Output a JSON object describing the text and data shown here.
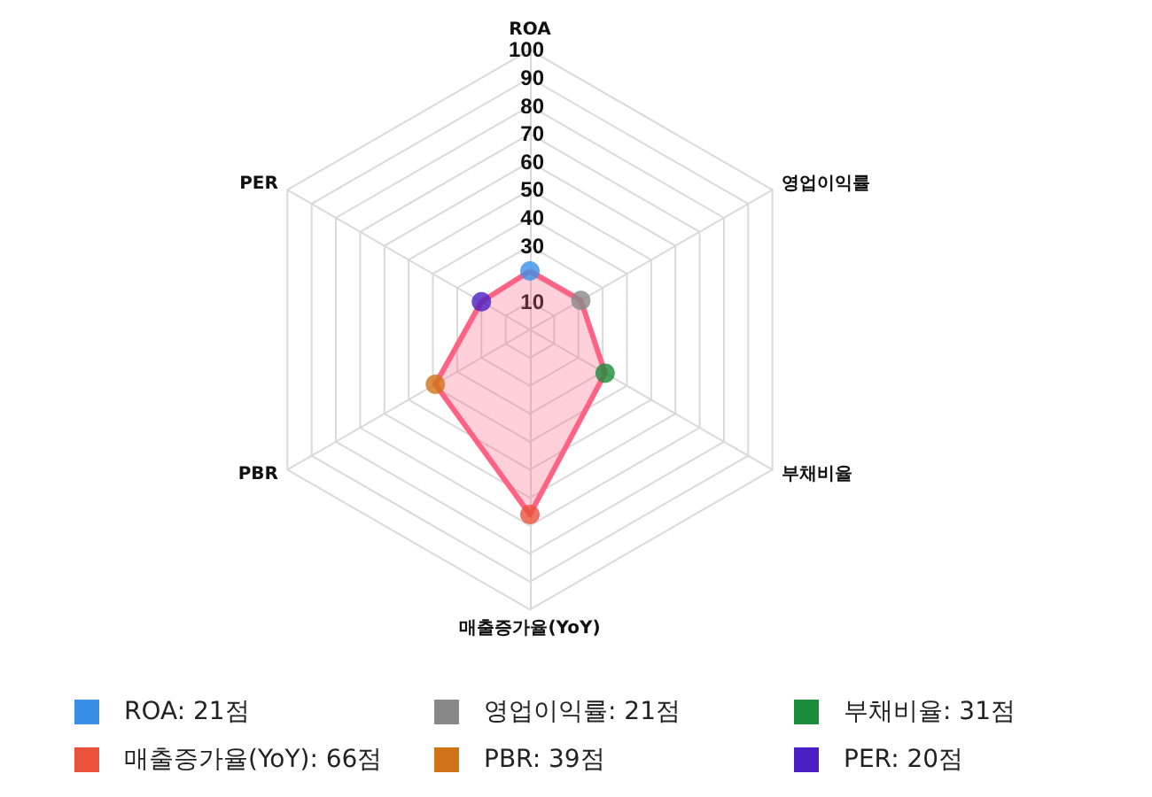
{
  "chart_data": {
    "type": "radar",
    "categories": [
      "ROA",
      "영업이익률",
      "부채비율",
      "매출증가율(YoY)",
      "PBR",
      "PER"
    ],
    "series": [
      {
        "color": "#ff6384",
        "values": [
          21,
          21,
          31,
          66,
          39,
          20
        ]
      }
    ],
    "colors": [
      "#3a8ee6",
      "#888888",
      "#1a8c3a",
      "#eb503a",
      "#cf7417",
      "#4a1fc4"
    ],
    "value_labels": [
      "ROA: 21점",
      "영업이익률: 21점",
      "부채비율: 31점",
      "매출증가율(YoY): 66점",
      "PBR: 39점",
      "PER: 20점"
    ],
    "ylim": [
      0,
      100
    ],
    "yticks": [
      10,
      30,
      40,
      50,
      60,
      70,
      80,
      90,
      100
    ],
    "marker": "circle"
  }
}
